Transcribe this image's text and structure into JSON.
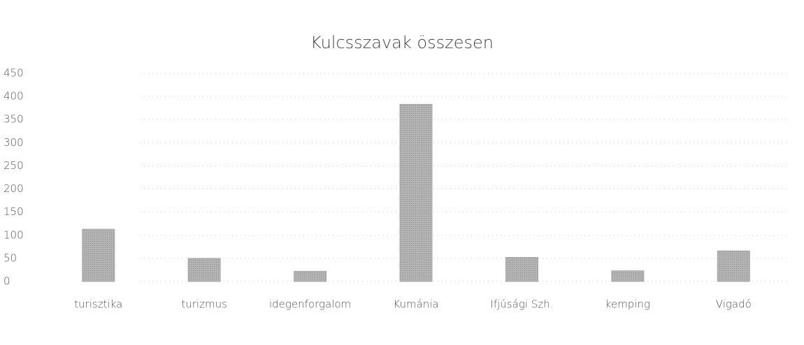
{
  "chart_data": {
    "type": "bar",
    "title": "Kulcsszavak összesen",
    "categories": [
      "turisztika",
      "turizmus",
      "idegenforgalom",
      "Kumánia",
      "Ifjúsági Szh.",
      "kemping",
      "Vigadó"
    ],
    "values": [
      113,
      50,
      22,
      383,
      52,
      23,
      66
    ],
    "color": "#a8a8a8",
    "ylim": [
      0,
      450
    ],
    "yticks": [
      0,
      50,
      100,
      150,
      200,
      250,
      300,
      350,
      400,
      450
    ],
    "grid": true
  }
}
